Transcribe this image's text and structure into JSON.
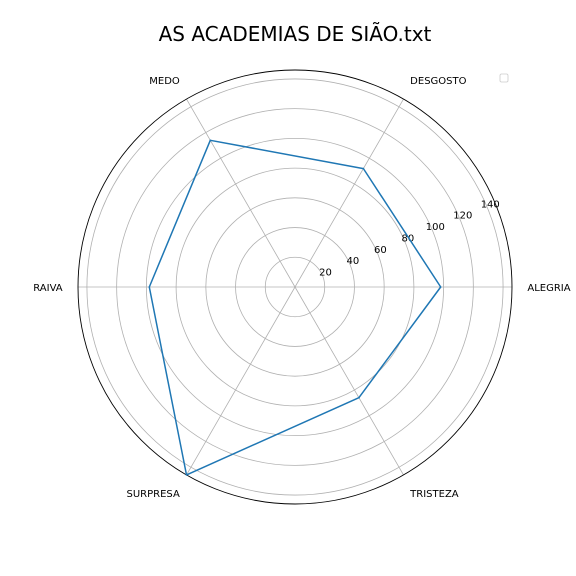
{
  "chart_data": {
    "type": "radar",
    "title": "AS ACADEMIAS DE SIÃO.txt",
    "categories": [
      "ALEGRIA",
      "DESGOSTO",
      "MEDO",
      "RAIVA",
      "SURPRESA",
      "TRISTEZA"
    ],
    "series": [
      {
        "values": [
          98,
          92,
          114,
          98,
          146,
          86
        ],
        "color": "#1f77b4"
      }
    ],
    "radial_ticks": [
      20,
      40,
      60,
      80,
      100,
      120,
      140
    ],
    "rlim": [
      0,
      146
    ],
    "grid": true,
    "legend": "top-right"
  }
}
